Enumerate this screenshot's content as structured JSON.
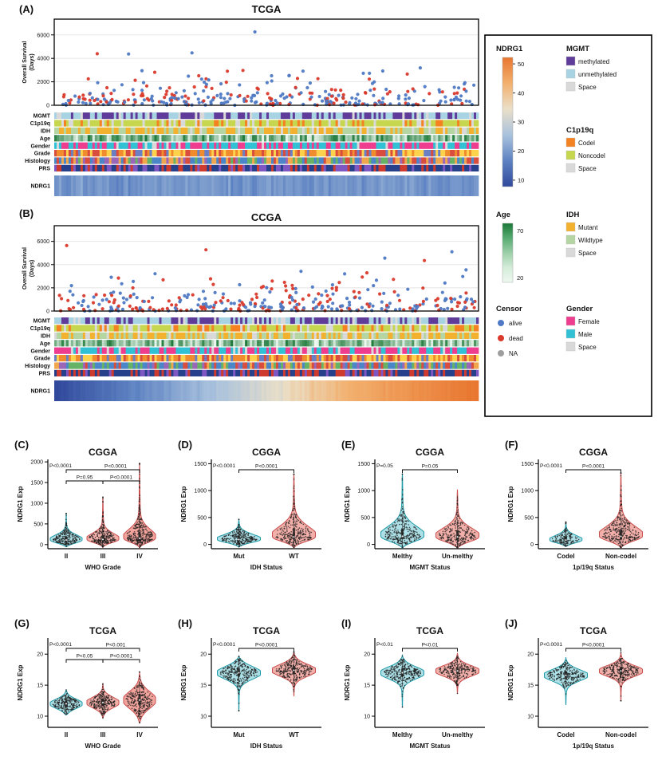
{
  "figure": {
    "background": "#ffffff"
  },
  "legend": {
    "ndrg1": {
      "title": "NDRG1",
      "ticks": [
        50,
        40,
        30,
        20,
        10
      ],
      "gradient_top_to_bottom": [
        "#e8762f",
        "#f2b06e",
        "#eadfc8",
        "#a9c2dd",
        "#5d82c2",
        "#31499c"
      ]
    },
    "mgmt": {
      "title": "MGMT",
      "items": [
        {
          "label": "methylated",
          "color": "#5f3c99"
        },
        {
          "label": "unmethylated",
          "color": "#a8d3e2"
        },
        {
          "label": "Space",
          "color": "#d9d9d9"
        }
      ]
    },
    "c1p19q": {
      "title": "C1p19q",
      "items": [
        {
          "label": "Codel",
          "color": "#f58220"
        },
        {
          "label": "Noncodel",
          "color": "#c7d64f"
        },
        {
          "label": "Space",
          "color": "#d9d9d9"
        }
      ]
    },
    "age": {
      "title": "Age",
      "ticks": [
        70,
        20
      ],
      "gradient_top_to_bottom": [
        "#1b7837",
        "#58ab72",
        "#9ccfa9",
        "#d4ecd9",
        "#eef8f0"
      ]
    },
    "idh": {
      "title": "IDH",
      "items": [
        {
          "label": "Mutant",
          "color": "#f2b12e"
        },
        {
          "label": "Wildtype",
          "color": "#b5d6a2"
        },
        {
          "label": "Space",
          "color": "#d9d9d9"
        }
      ]
    },
    "censor": {
      "title": "Censor",
      "items": [
        {
          "label": "alive",
          "color": "#4e79c4"
        },
        {
          "label": "dead",
          "color": "#d93a2b"
        },
        {
          "label": "NA",
          "color": "#9e9e9e"
        }
      ]
    },
    "gender": {
      "title": "Gender",
      "items": [
        {
          "label": "Female",
          "color": "#ee3d8f"
        },
        {
          "label": "Male",
          "color": "#32c1d4"
        },
        {
          "label": "Space",
          "color": "#d9d9d9"
        }
      ]
    }
  },
  "chart_data": [
    {
      "id": "A",
      "panel_label": "(A)",
      "type": "scatter-heatmap",
      "title": "TCGA",
      "ylabel_lines": [
        "Overall Survival",
        "(Days)"
      ],
      "yticks": [
        0,
        2000,
        4000,
        6000
      ],
      "ylim": [
        0,
        6800
      ],
      "n_samples": 330,
      "censor_colors": {
        "alive": "#4e79c4",
        "dead": "#d93a2b"
      },
      "alive_fraction": 0.62,
      "tracks": [
        "MGMT",
        "C1p19q",
        "IDH",
        "Age",
        "Gender",
        "Grade",
        "Histology",
        "PRS"
      ],
      "expression_track": {
        "label": "NDRG1",
        "pattern": "uniform-low"
      }
    },
    {
      "id": "B",
      "panel_label": "(B)",
      "type": "scatter-heatmap",
      "title": "CCGA",
      "ylabel_lines": [
        "Overall Survival",
        "(Days)"
      ],
      "yticks": [
        0,
        2000,
        4000,
        6000
      ],
      "ylim": [
        0,
        6800
      ],
      "n_samples": 330,
      "censor_colors": {
        "alive": "#4e79c4",
        "dead": "#d93a2b"
      },
      "alive_fraction": 0.55,
      "tracks": [
        "MGMT",
        "C1p19q",
        "IDH",
        "Age",
        "Gender",
        "Grade",
        "Histology",
        "PRS"
      ],
      "expression_track": {
        "label": "NDRG1",
        "pattern": "sorted-ascending"
      }
    },
    {
      "id": "C",
      "panel_label": "(C)",
      "type": "violin",
      "title": "CGGA",
      "ylabel": "NDRG1 Exp",
      "xlabel": "WHO Grade",
      "categories": [
        "II",
        "III",
        "IV"
      ],
      "yticks": [
        0,
        500,
        1000,
        1500,
        2000
      ],
      "ylim": [
        -100,
        2060
      ],
      "corner_pvalue": "P<0.0001",
      "brackets": [
        {
          "i1": 0,
          "i2": 2,
          "label": "P<0.0001",
          "level": 0
        },
        {
          "i1": 0,
          "i2": 1,
          "label": "P=0.95",
          "level": 1
        },
        {
          "i1": 1,
          "i2": 2,
          "label": "P<0.0001",
          "level": 1
        }
      ],
      "violins": [
        {
          "label": "II",
          "fill": "#9fdbe2",
          "stroke": "#1f9aa8",
          "mode": 110,
          "s_low": 70,
          "s_up": 120,
          "lo": -60,
          "hi": 760,
          "tail_amp": 0.12,
          "n": 240
        },
        {
          "label": "III",
          "fill": "#f1a29b",
          "stroke": "#c94f4f",
          "mode": 125,
          "s_low": 75,
          "s_up": 140,
          "lo": -70,
          "hi": 1160,
          "tail_amp": 0.13,
          "n": 260
        },
        {
          "label": "IV",
          "fill": "#f1948c",
          "stroke": "#c94f4f",
          "mode": 150,
          "s_low": 90,
          "s_up": 210,
          "lo": -90,
          "hi": 1980,
          "tail_amp": 0.13,
          "n": 300
        }
      ]
    },
    {
      "id": "D",
      "panel_label": "(D)",
      "type": "violin",
      "title": "CGGA",
      "ylabel": "NDRG1 Exp",
      "xlabel": "IDH Status",
      "categories": [
        "Mut",
        "WT"
      ],
      "yticks": [
        0,
        500,
        1000,
        1500
      ],
      "ylim": [
        -80,
        1580
      ],
      "corner_pvalue": "P<0.0001",
      "brackets": [
        {
          "i1": 0,
          "i2": 1,
          "label": "P<0.0001",
          "level": 0
        }
      ],
      "violins": [
        {
          "label": "Mut",
          "fill": "#9fdbe2",
          "stroke": "#1f9aa8",
          "mode": 90,
          "s_low": 55,
          "s_up": 95,
          "lo": -50,
          "hi": 470,
          "tail_amp": 0.12,
          "n": 260
        },
        {
          "label": "WT",
          "fill": "#f1a29b",
          "stroke": "#c94f4f",
          "mode": 140,
          "s_low": 80,
          "s_up": 190,
          "lo": -70,
          "hi": 1320,
          "tail_amp": 0.13,
          "n": 280
        }
      ]
    },
    {
      "id": "E",
      "panel_label": "(E)",
      "type": "violin",
      "title": "CGGA",
      "ylabel": "NDRG1 Exp",
      "xlabel": "MGMT Status",
      "categories": [
        "Melthy",
        "Un-melthy"
      ],
      "yticks": [
        0,
        500,
        1000,
        1500
      ],
      "ylim": [
        -80,
        1580
      ],
      "corner_pvalue": "P=0.05",
      "brackets": [
        {
          "i1": 0,
          "i2": 1,
          "label": "P=0.05",
          "level": 0
        }
      ],
      "violins": [
        {
          "label": "Melthy",
          "fill": "#9fdbe2",
          "stroke": "#1f9aa8",
          "mode": 150,
          "s_low": 90,
          "s_up": 180,
          "lo": -70,
          "hi": 1320,
          "tail_amp": 0.12,
          "n": 280
        },
        {
          "label": "Un-melthy",
          "fill": "#f1a29b",
          "stroke": "#c94f4f",
          "mode": 140,
          "s_low": 85,
          "s_up": 160,
          "lo": -70,
          "hi": 1020,
          "tail_amp": 0.12,
          "n": 260
        }
      ]
    },
    {
      "id": "F",
      "panel_label": "(F)",
      "type": "violin",
      "title": "CGGA",
      "ylabel": "NDRG1 Exp",
      "xlabel": "1p/19q Status",
      "categories": [
        "Codel",
        "Non-codel"
      ],
      "yticks": [
        0,
        500,
        1000,
        1500
      ],
      "ylim": [
        -80,
        1580
      ],
      "corner_pvalue": "P<0.0001",
      "brackets": [
        {
          "i1": 0,
          "i2": 1,
          "label": "P<0.0001",
          "level": 0
        }
      ],
      "violins": [
        {
          "label": "Codel",
          "fill": "#9fdbe2",
          "stroke": "#1f9aa8",
          "mode": 80,
          "s_low": 50,
          "s_up": 85,
          "lo": -40,
          "hi": 420,
          "tail_amp": 0.1,
          "n": 150,
          "wscale": 0.75
        },
        {
          "label": "Non-codel",
          "fill": "#f1a29b",
          "stroke": "#c94f4f",
          "mode": 150,
          "s_low": 85,
          "s_up": 180,
          "lo": -70,
          "hi": 1340,
          "tail_amp": 0.13,
          "n": 300
        }
      ]
    },
    {
      "id": "G",
      "panel_label": "(G)",
      "type": "violin",
      "title": "TCGA",
      "ylabel": "NDRG1 Exp",
      "xlabel": "WHO Grade",
      "categories": [
        "II",
        "III",
        "IV"
      ],
      "yticks": [
        10,
        15,
        20
      ],
      "ylim": [
        8.2,
        22.6
      ],
      "corner_pvalue": "P<0.0001",
      "brackets": [
        {
          "i1": 0,
          "i2": 2,
          "label": "P<0.001",
          "level": 0
        },
        {
          "i1": 0,
          "i2": 1,
          "label": "P<0.05",
          "level": 1
        },
        {
          "i1": 1,
          "i2": 2,
          "label": "P<0.0001",
          "level": 1
        }
      ],
      "violins": [
        {
          "label": "II",
          "fill": "#9fdbe2",
          "stroke": "#1f9aa8",
          "mode": 12,
          "s": 0.75,
          "lo": 10.2,
          "hi": 14.3,
          "tail_amp": 0.08,
          "sym": true,
          "n": 220
        },
        {
          "label": "III",
          "fill": "#f1a29b",
          "stroke": "#c94f4f",
          "mode": 12.2,
          "s": 0.85,
          "lo": 9.7,
          "hi": 15.3,
          "tail_amp": 0.09,
          "sym": true,
          "n": 240
        },
        {
          "label": "IV",
          "fill": "#f1948c",
          "stroke": "#c94f4f",
          "mode": 12.6,
          "s": 1.35,
          "lo": 8.9,
          "hi": 17.2,
          "tail_amp": 0.09,
          "sym": true,
          "n": 260
        }
      ]
    },
    {
      "id": "H",
      "panel_label": "(H)",
      "type": "violin",
      "title": "TCGA",
      "ylabel": "NDRG1 Exp",
      "xlabel": "IDH Status",
      "categories": [
        "Mut",
        "WT"
      ],
      "yticks": [
        10,
        15,
        20
      ],
      "ylim": [
        8.2,
        22.6
      ],
      "corner_pvalue": "P<0.0001",
      "brackets": [
        {
          "i1": 0,
          "i2": 1,
          "label": "P<0.0001",
          "level": 0
        }
      ],
      "violins": [
        {
          "label": "Mut",
          "fill": "#9fdbe2",
          "stroke": "#1f9aa8",
          "mode": 17,
          "s": 1.0,
          "lo": 10.8,
          "hi": 19.7,
          "tail_amp": 0.09,
          "sym": true,
          "n": 300
        },
        {
          "label": "WT",
          "fill": "#f1a29b",
          "stroke": "#c94f4f",
          "mode": 17.4,
          "s": 0.95,
          "lo": 13.2,
          "hi": 20.4,
          "tail_amp": 0.09,
          "sym": true,
          "n": 280
        }
      ]
    },
    {
      "id": "I",
      "panel_label": "(I)",
      "type": "violin",
      "title": "TCGA",
      "ylabel": "NDRG1 Exp",
      "xlabel": "MGMT Status",
      "categories": [
        "Melthy",
        "Un-melthy"
      ],
      "yticks": [
        10,
        15,
        20
      ],
      "ylim": [
        8.2,
        22.6
      ],
      "corner_pvalue": "P<0.01",
      "brackets": [
        {
          "i1": 0,
          "i2": 1,
          "label": "P<0.01",
          "level": 0
        }
      ],
      "violins": [
        {
          "label": "Melthy",
          "fill": "#9fdbe2",
          "stroke": "#1f9aa8",
          "mode": 17,
          "s": 0.95,
          "lo": 11.4,
          "hi": 19.8,
          "tail_amp": 0.09,
          "sym": true,
          "n": 300
        },
        {
          "label": "Un-melthy",
          "fill": "#f1a29b",
          "stroke": "#c94f4f",
          "mode": 17.3,
          "s": 0.85,
          "lo": 13.6,
          "hi": 20.2,
          "tail_amp": 0.09,
          "sym": true,
          "n": 240
        }
      ]
    },
    {
      "id": "J",
      "panel_label": "(J)",
      "type": "violin",
      "title": "TCGA",
      "ylabel": "NDRG1 Exp",
      "xlabel": "1p/19q Status",
      "categories": [
        "Codel",
        "Non-codel"
      ],
      "yticks": [
        10,
        15,
        20
      ],
      "ylim": [
        8.2,
        22.6
      ],
      "corner_pvalue": "P<0.0001",
      "brackets": [
        {
          "i1": 0,
          "i2": 1,
          "label": "P<0.0001",
          "level": 0
        }
      ],
      "violins": [
        {
          "label": "Codel",
          "fill": "#9fdbe2",
          "stroke": "#1f9aa8",
          "mode": 16.6,
          "s": 0.9,
          "lo": 11.8,
          "hi": 19.5,
          "tail_amp": 0.09,
          "sym": true,
          "n": 260
        },
        {
          "label": "Non-codel",
          "fill": "#f1a29b",
          "stroke": "#c94f4f",
          "mode": 17.3,
          "s": 0.85,
          "lo": 12.4,
          "hi": 20.3,
          "tail_amp": 0.09,
          "sym": true,
          "n": 280
        }
      ]
    }
  ]
}
